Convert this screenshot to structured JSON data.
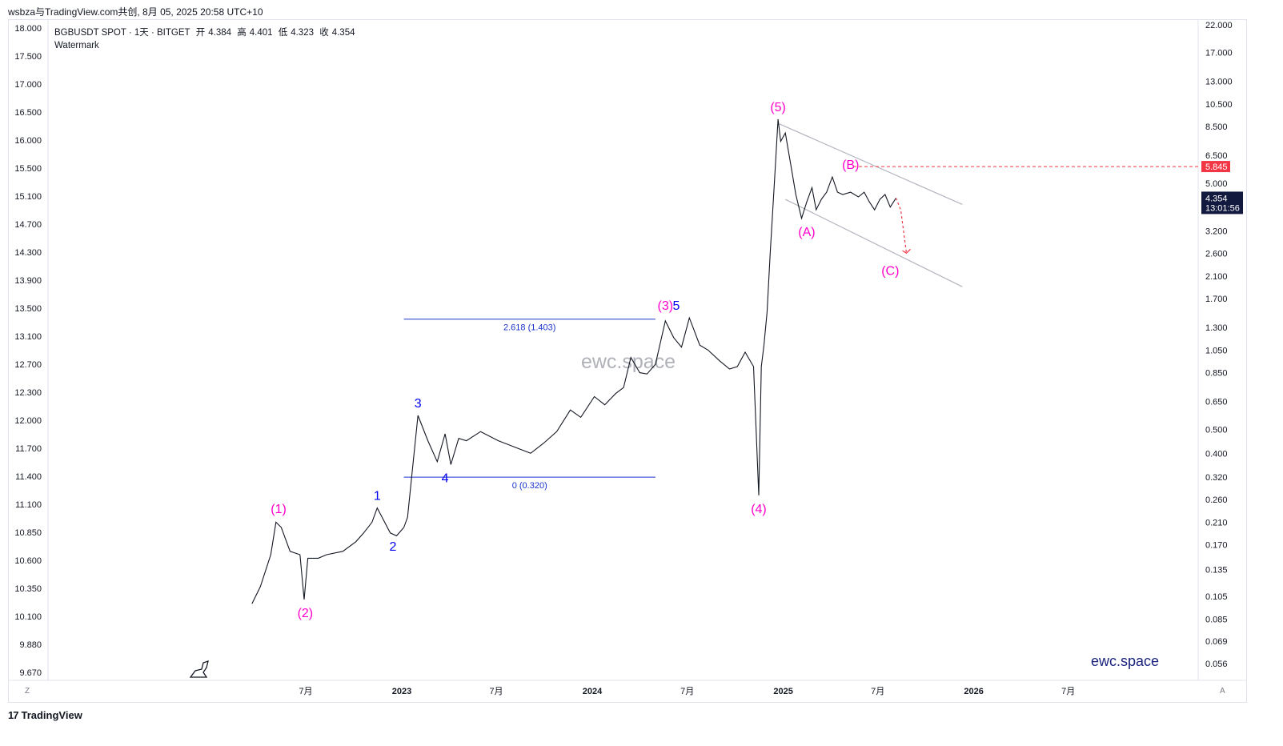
{
  "header": {
    "caption": "wsbza与TradingView.com共创, 8月 05, 2025 20:58 UTC+10"
  },
  "legend": {
    "symbol": "BGBUSDT SPOT · 1天 · BITGET",
    "open_label": "开",
    "open": "4.384",
    "high_label": "高",
    "high": "4.401",
    "low_label": "低",
    "low": "4.323",
    "close_label": "收",
    "close": "4.354",
    "watermark_label": "Watermark"
  },
  "axis_buttons": {
    "left": "Z",
    "right": "A"
  },
  "footer": {
    "brand": "TradingView",
    "logo_glyph": "17"
  },
  "colors": {
    "price": "#131722",
    "primary_wave": "#ff00cc",
    "minor_wave": "#0000ee",
    "fib": "#1a33cc",
    "channel": "#b2b5be",
    "projection": "#f23645",
    "current_price_bg": "#131a3f",
    "target_bg": "#f23645",
    "watermark": "#9598a1"
  },
  "chart_data": {
    "type": "line",
    "series": [
      {
        "values_x": [
          "2022-03-20",
          "2022-04-05",
          "2022-04-25",
          "2022-05-05",
          "2022-05-15",
          "2022-06-01",
          "2022-06-20",
          "2022-06-28",
          "2022-07-05",
          "2022-07-25",
          "2022-08-10",
          "2022-09-10",
          "2022-10-05",
          "2022-10-20",
          "2022-11-05",
          "2022-11-15",
          "2022-12-10",
          "2022-12-22",
          "2023-01-05",
          "2023-01-12",
          "2023-02-01",
          "2023-02-20",
          "2023-03-10",
          "2023-03-25",
          "2023-04-05",
          "2023-04-20",
          "2023-05-05",
          "2023-06-01",
          "2023-07-05",
          "2023-08-10",
          "2023-09-05",
          "2023-09-30",
          "2023-10-25",
          "2023-11-20",
          "2023-12-10",
          "2024-01-05",
          "2024-01-25",
          "2024-02-15",
          "2024-03-01",
          "2024-03-15",
          "2024-04-01",
          "2024-04-15",
          "2024-05-01",
          "2024-05-20",
          "2024-06-05",
          "2024-06-20",
          "2024-07-05",
          "2024-07-25",
          "2024-08-10",
          "2024-09-01",
          "2024-09-20",
          "2024-10-05",
          "2024-10-20",
          "2024-11-05",
          "2024-11-15",
          "2024-11-20",
          "2024-11-25",
          "2024-12-01",
          "2024-12-07",
          "2024-12-15",
          "2024-12-22",
          "2024-12-27",
          "2025-01-05",
          "2025-01-15",
          "2025-01-25",
          "2025-02-05",
          "2025-02-15",
          "2025-02-25",
          "2025-03-05",
          "2025-03-15",
          "2025-03-25",
          "2025-04-05",
          "2025-04-15",
          "2025-04-25",
          "2025-05-10",
          "2025-05-25",
          "2025-06-05",
          "2025-06-15",
          "2025-06-25",
          "2025-07-05",
          "2025-07-15",
          "2025-07-25",
          "2025-08-05"
        ],
        "name": "",
        "values": [
          0.098,
          0.115,
          0.155,
          0.21,
          0.2,
          0.16,
          0.155,
          0.102,
          0.15,
          0.15,
          0.155,
          0.16,
          0.175,
          0.19,
          0.21,
          0.24,
          0.19,
          0.185,
          0.2,
          0.22,
          0.57,
          0.45,
          0.37,
          0.48,
          0.36,
          0.46,
          0.45,
          0.49,
          0.45,
          0.42,
          0.4,
          0.44,
          0.49,
          0.6,
          0.56,
          0.68,
          0.63,
          0.7,
          0.74,
          0.98,
          0.85,
          0.84,
          0.92,
          1.38,
          1.18,
          1.08,
          1.42,
          1.1,
          1.05,
          0.95,
          0.88,
          0.9,
          1.03,
          0.9,
          0.27,
          0.9,
          1.1,
          1.5,
          2.6,
          5.0,
          9.1,
          7.4,
          8.0,
          6.0,
          4.5,
          3.6,
          4.2,
          4.8,
          3.9,
          4.3,
          4.6,
          5.3,
          4.6,
          4.5,
          4.6,
          4.4,
          4.6,
          4.2,
          3.9,
          4.3,
          4.5,
          4.0,
          4.354
        ]
      }
    ],
    "x_tick_labels": [
      "7月",
      "2023",
      "7月",
      "2024",
      "7月",
      "2025",
      "7月",
      "2026",
      "7月"
    ],
    "y_left_ticks": [
      "18.000",
      "17.500",
      "17.000",
      "16.500",
      "16.000",
      "15.500",
      "15.100",
      "14.700",
      "14.300",
      "13.900",
      "13.500",
      "13.100",
      "12.700",
      "12.300",
      "12.000",
      "11.700",
      "11.400",
      "11.100",
      "10.850",
      "10.600",
      "10.350",
      "10.100",
      "9.880",
      "9.670"
    ],
    "y_right_ticks": [
      "22.000",
      "17.000",
      "13.000",
      "10.500",
      "8.500",
      "6.500",
      "5.000",
      "3.200",
      "2.600",
      "2.100",
      "1.700",
      "1.300",
      "1.050",
      "0.850",
      "0.650",
      "0.500",
      "0.400",
      "0.320",
      "0.260",
      "0.210",
      "0.170",
      "0.135",
      "0.105",
      "0.085",
      "0.069",
      "0.056"
    ],
    "y_scale": "log",
    "grid": false,
    "current_price": {
      "value": "4.354",
      "countdown": "13:01:56"
    },
    "target_price": "5.845",
    "wave_labels": {
      "primary": [
        {
          "text": "(1)",
          "x": "2022-05-10",
          "y": 0.212
        },
        {
          "text": "(2)",
          "x": "2022-06-30",
          "y": 0.102
        },
        {
          "text": "(3)",
          "x": "2024-05-20",
          "y": 1.42
        },
        {
          "text": "(4)",
          "x": "2024-11-15",
          "y": 0.27
        },
        {
          "text": "(5)",
          "x": "2024-12-22",
          "y": 9.1
        },
        {
          "text": "(A)",
          "x": "2025-02-15",
          "y": 3.6
        },
        {
          "text": "(B)",
          "x": "2025-05-10",
          "y": 5.3
        },
        {
          "text": "(C)",
          "x": "2025-07-25",
          "y": 2.5
        }
      ],
      "minor": [
        {
          "text": "1",
          "x": "2022-11-15",
          "y": 0.24
        },
        {
          "text": "2",
          "x": "2022-12-15",
          "y": 0.19
        },
        {
          "text": "3",
          "x": "2023-02-01",
          "y": 0.57
        },
        {
          "text": "4",
          "x": "2023-03-25",
          "y": 0.36
        },
        {
          "text": "5",
          "x": "2024-06-10",
          "y": 1.42
        }
      ]
    },
    "fibonacci": [
      {
        "label": "2.618 (1.403)",
        "value": 1.403
      },
      {
        "label": "0 (0.320)",
        "value": 0.32
      }
    ],
    "watermark": "ewc.space",
    "brand_watermark": "ewc.space"
  }
}
